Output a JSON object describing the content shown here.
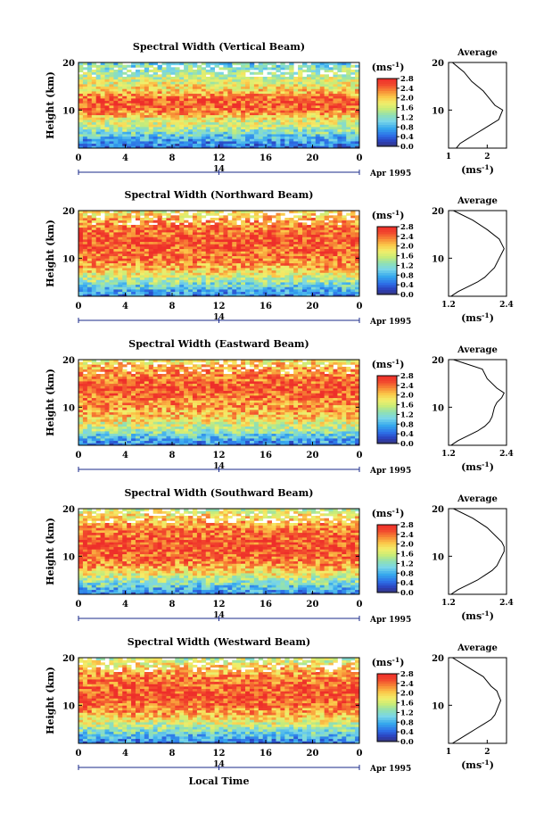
{
  "figure": {
    "xlabel": "Local Time",
    "ylabel": "Height (km)",
    "date_suffix": "Apr 1995",
    "date_day": "14",
    "colorbar_unit": "(ms-1)",
    "profile_title": "Average",
    "profile_unit": "(ms-1)"
  },
  "chart_data": [
    {
      "type": "heatmap",
      "title": "Spectral Width (Vertical Beam)",
      "xlabel": "Local Time",
      "ylabel": "Height (km)",
      "xlim": [
        0,
        24
      ],
      "ylim": [
        2,
        20
      ],
      "x_ticks": [
        "0",
        "4",
        "8",
        "12",
        "16",
        "20",
        "0"
      ],
      "y_ticks": [
        "10",
        "20"
      ],
      "colorbar": {
        "label": "(ms-1)",
        "ticks": [
          "2.8",
          "2.4",
          "2.0",
          "1.6",
          "1.2",
          "0.8",
          "0.4",
          "0.0"
        ],
        "range": [
          0,
          2.8
        ]
      },
      "band_profile": [
        [
          2,
          0.4
        ],
        [
          4,
          0.8
        ],
        [
          6,
          1.4
        ],
        [
          8,
          1.8
        ],
        [
          10,
          2.4
        ],
        [
          12,
          2.6
        ],
        [
          14,
          2.0
        ],
        [
          16,
          1.7
        ],
        [
          18,
          1.4
        ],
        [
          20,
          1.0
        ]
      ]
    },
    {
      "type": "heatmap",
      "title": "Spectral Width (Northward Beam)",
      "xlabel": "Local Time",
      "ylabel": "Height (km)",
      "xlim": [
        0,
        24
      ],
      "ylim": [
        2,
        20
      ],
      "x_ticks": [
        "0",
        "4",
        "8",
        "12",
        "16",
        "20",
        "0"
      ],
      "y_ticks": [
        "10",
        "20"
      ],
      "colorbar": {
        "label": "(ms-1)",
        "ticks": [
          "2.8",
          "2.4",
          "2.0",
          "1.6",
          "1.2",
          "0.8",
          "0.4",
          "0.0"
        ],
        "range": [
          0,
          2.8
        ]
      },
      "band_profile": [
        [
          2,
          0.5
        ],
        [
          4,
          1.0
        ],
        [
          6,
          1.6
        ],
        [
          8,
          2.1
        ],
        [
          10,
          2.4
        ],
        [
          12,
          2.5
        ],
        [
          14,
          2.6
        ],
        [
          16,
          2.4
        ],
        [
          18,
          2.2
        ],
        [
          20,
          1.8
        ]
      ]
    },
    {
      "type": "heatmap",
      "title": "Spectral Width (Eastward Beam)",
      "xlabel": "Local Time",
      "ylabel": "Height (km)",
      "xlim": [
        0,
        24
      ],
      "ylim": [
        2,
        20
      ],
      "x_ticks": [
        "0",
        "4",
        "8",
        "12",
        "16",
        "20",
        "0"
      ],
      "y_ticks": [
        "10",
        "20"
      ],
      "colorbar": {
        "label": "(ms-1)",
        "ticks": [
          "2.8",
          "2.4",
          "2.0",
          "1.6",
          "1.2",
          "0.8",
          "0.4",
          "0.0"
        ],
        "range": [
          0,
          2.8
        ]
      },
      "band_profile": [
        [
          2,
          0.5
        ],
        [
          4,
          1.0
        ],
        [
          6,
          1.6
        ],
        [
          8,
          2.0
        ],
        [
          10,
          2.2
        ],
        [
          12,
          2.4
        ],
        [
          14,
          2.6
        ],
        [
          16,
          2.4
        ],
        [
          18,
          2.2
        ],
        [
          20,
          1.8
        ]
      ]
    },
    {
      "type": "heatmap",
      "title": "Spectral Width (Southward Beam)",
      "xlabel": "Local Time",
      "ylabel": "Height (km)",
      "xlim": [
        0,
        24
      ],
      "ylim": [
        2,
        20
      ],
      "x_ticks": [
        "0",
        "4",
        "8",
        "12",
        "16",
        "20",
        "0"
      ],
      "y_ticks": [
        "10",
        "20"
      ],
      "colorbar": {
        "label": "(ms-1)",
        "ticks": [
          "2.8",
          "2.4",
          "2.0",
          "1.6",
          "1.2",
          "0.8",
          "0.4",
          "0.0"
        ],
        "range": [
          0,
          2.8
        ]
      },
      "band_profile": [
        [
          2,
          0.5
        ],
        [
          4,
          1.1
        ],
        [
          6,
          1.7
        ],
        [
          8,
          2.2
        ],
        [
          10,
          2.5
        ],
        [
          12,
          2.6
        ],
        [
          14,
          2.5
        ],
        [
          16,
          2.3
        ],
        [
          18,
          2.0
        ],
        [
          20,
          1.6
        ]
      ]
    },
    {
      "type": "heatmap",
      "title": "Spectral Width (Westward Beam)",
      "xlabel": "Local Time",
      "ylabel": "Height (km)",
      "xlim": [
        0,
        24
      ],
      "ylim": [
        2,
        20
      ],
      "x_ticks": [
        "0",
        "4",
        "8",
        "12",
        "16",
        "20",
        "0"
      ],
      "y_ticks": [
        "10",
        "20"
      ],
      "colorbar": {
        "label": "(ms-1)",
        "ticks": [
          "2.8",
          "2.4",
          "2.0",
          "1.6",
          "1.2",
          "0.8",
          "0.4",
          "0.0"
        ],
        "range": [
          0,
          2.8
        ]
      },
      "band_profile": [
        [
          2,
          0.5
        ],
        [
          4,
          1.0
        ],
        [
          6,
          1.6
        ],
        [
          8,
          2.1
        ],
        [
          10,
          2.4
        ],
        [
          12,
          2.6
        ],
        [
          14,
          2.5
        ],
        [
          16,
          2.3
        ],
        [
          18,
          2.0
        ],
        [
          20,
          1.5
        ]
      ]
    },
    {
      "type": "line",
      "title": "Average",
      "xlabel": "(ms-1)",
      "ylabel": "Height (km)",
      "ylim": [
        2,
        20
      ],
      "xlim": [
        1,
        2.5
      ],
      "x_ticks": [
        "1",
        "2"
      ],
      "y_ticks": [
        "10",
        "20"
      ],
      "series": [
        {
          "x": [
            1.2,
            1.3,
            1.5,
            1.7,
            1.9,
            2.1,
            2.3,
            2.4,
            2.2,
            2.1,
            2.0,
            1.9,
            1.6,
            1.4,
            1.1
          ],
          "y": [
            2,
            3,
            4,
            5,
            6,
            7,
            8,
            10,
            11,
            12,
            13,
            14,
            16,
            18,
            20
          ]
        }
      ]
    },
    {
      "type": "line",
      "title": "Average",
      "xlabel": "(ms-1)",
      "ylabel": "Height (km)",
      "ylim": [
        2,
        20
      ],
      "xlim": [
        1.2,
        2.4
      ],
      "x_ticks": [
        "1.2",
        "2.4"
      ],
      "y_ticks": [
        "10",
        "20"
      ],
      "series": [
        {
          "x": [
            1.25,
            1.4,
            1.6,
            1.8,
            1.95,
            2.05,
            2.15,
            2.25,
            2.3,
            2.35,
            2.3,
            2.25,
            2.0,
            1.7,
            1.3
          ],
          "y": [
            2,
            3,
            4,
            5,
            6,
            7,
            8,
            10,
            11,
            12,
            13,
            14,
            16,
            18,
            20
          ]
        }
      ]
    },
    {
      "type": "line",
      "title": "Average",
      "xlabel": "(ms-1)",
      "ylabel": "Height (km)",
      "ylim": [
        2,
        20
      ],
      "xlim": [
        1.2,
        2.4
      ],
      "x_ticks": [
        "1.2",
        "2.4"
      ],
      "y_ticks": [
        "10",
        "20"
      ],
      "series": [
        {
          "x": [
            1.25,
            1.4,
            1.6,
            1.8,
            1.95,
            2.05,
            2.1,
            2.15,
            2.2,
            2.3,
            2.35,
            2.2,
            2.0,
            1.9,
            1.3
          ],
          "y": [
            2,
            3,
            4,
            5,
            6,
            7,
            8,
            10,
            11,
            12,
            13,
            14,
            16,
            18,
            20
          ]
        }
      ]
    },
    {
      "type": "line",
      "title": "Average",
      "xlabel": "(ms-1)",
      "ylabel": "Height (km)",
      "ylim": [
        2,
        20
      ],
      "xlim": [
        1.2,
        2.4
      ],
      "x_ticks": [
        "1.2",
        "2.4"
      ],
      "y_ticks": [
        "10",
        "20"
      ],
      "series": [
        {
          "x": [
            1.25,
            1.4,
            1.6,
            1.8,
            1.95,
            2.1,
            2.2,
            2.3,
            2.35,
            2.35,
            2.3,
            2.2,
            2.0,
            1.7,
            1.3
          ],
          "y": [
            2,
            3,
            4,
            5,
            6,
            7,
            8,
            10,
            11,
            12,
            13,
            14,
            16,
            18,
            20
          ]
        }
      ]
    },
    {
      "type": "line",
      "title": "Average",
      "xlabel": "(ms-1)",
      "ylabel": "Height (km)",
      "ylim": [
        2,
        20
      ],
      "xlim": [
        1,
        2.5
      ],
      "x_ticks": [
        "1",
        "2"
      ],
      "y_ticks": [
        "10",
        "20"
      ],
      "series": [
        {
          "x": [
            1.1,
            1.3,
            1.5,
            1.7,
            1.9,
            2.1,
            2.2,
            2.3,
            2.35,
            2.3,
            2.25,
            2.1,
            1.9,
            1.5,
            1.1
          ],
          "y": [
            2,
            3,
            4,
            5,
            6,
            7,
            8,
            10,
            11,
            12,
            13,
            14,
            16,
            18,
            20
          ]
        }
      ]
    }
  ]
}
